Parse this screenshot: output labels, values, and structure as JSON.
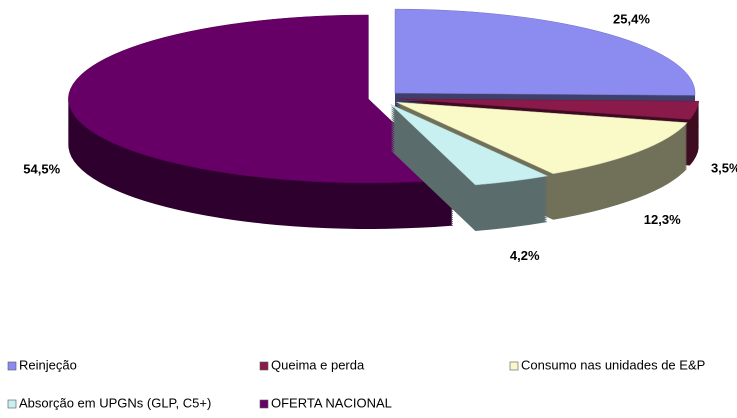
{
  "chart_data": {
    "type": "pie3d",
    "categories": [
      "Reinjeção",
      "Queima e perda",
      "Consumo nas unidades de E&P",
      "Absorção em UPGNs (GLP, C5+)",
      "OFERTA NACIONAL"
    ],
    "values": [
      25.4,
      3.5,
      12.3,
      4.2,
      54.5
    ],
    "value_labels": [
      "25,4%",
      "3,5%",
      "12,3%",
      "4,2%",
      "54,5%"
    ],
    "colors": [
      "#8c8cf0",
      "#8a1a4a",
      "#fafac8",
      "#c8f0f0",
      "#660066"
    ],
    "legend": "bottom"
  }
}
